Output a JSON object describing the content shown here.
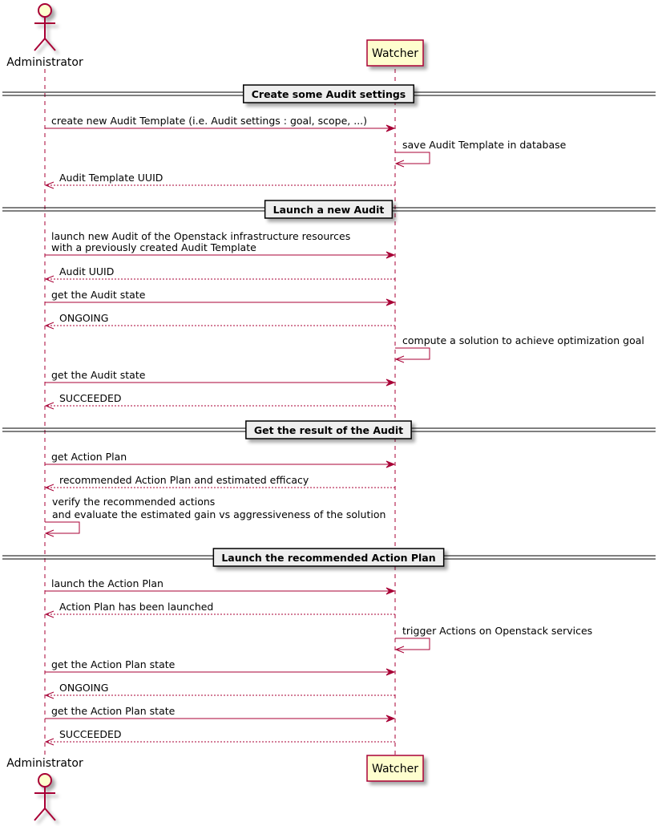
{
  "colors": {
    "line": "#A80036",
    "participant_fill": "#FEFECE",
    "divider_fill": "#EEEEEE"
  },
  "participants": {
    "administrator": {
      "label": "Administrator",
      "kind": "actor"
    },
    "watcher": {
      "label": "Watcher",
      "kind": "participant"
    }
  },
  "sequence": [
    {
      "type": "divider",
      "label": "Create some Audit settings"
    },
    {
      "type": "message",
      "from": "administrator",
      "to": "watcher",
      "style": "solid",
      "lines": [
        "create new Audit Template (i.e. Audit settings : goal, scope, ...)"
      ]
    },
    {
      "type": "message",
      "from": "watcher",
      "to": "watcher",
      "style": "solid",
      "lines": [
        "save Audit Template in database"
      ]
    },
    {
      "type": "message",
      "from": "watcher",
      "to": "administrator",
      "style": "dashed",
      "lines": [
        "Audit Template UUID"
      ]
    },
    {
      "type": "divider",
      "label": "Launch a new Audit"
    },
    {
      "type": "message",
      "from": "administrator",
      "to": "watcher",
      "style": "solid",
      "lines": [
        "launch new Audit of the Openstack infrastructure resources",
        "with a previously created Audit Template"
      ]
    },
    {
      "type": "message",
      "from": "watcher",
      "to": "administrator",
      "style": "dashed",
      "lines": [
        "Audit UUID"
      ]
    },
    {
      "type": "message",
      "from": "administrator",
      "to": "watcher",
      "style": "solid",
      "lines": [
        "get the Audit state"
      ]
    },
    {
      "type": "message",
      "from": "watcher",
      "to": "administrator",
      "style": "dashed",
      "lines": [
        "ONGOING"
      ]
    },
    {
      "type": "message",
      "from": "watcher",
      "to": "watcher",
      "style": "solid",
      "lines": [
        "compute a solution to achieve optimization goal"
      ]
    },
    {
      "type": "message",
      "from": "administrator",
      "to": "watcher",
      "style": "solid",
      "lines": [
        "get the Audit state"
      ]
    },
    {
      "type": "message",
      "from": "watcher",
      "to": "administrator",
      "style": "dashed",
      "lines": [
        "SUCCEEDED"
      ]
    },
    {
      "type": "divider",
      "label": "Get the result of the Audit"
    },
    {
      "type": "message",
      "from": "administrator",
      "to": "watcher",
      "style": "solid",
      "lines": [
        "get Action Plan"
      ]
    },
    {
      "type": "message",
      "from": "watcher",
      "to": "administrator",
      "style": "dashed",
      "lines": [
        "recommended Action Plan and estimated efficacy"
      ]
    },
    {
      "type": "message",
      "from": "administrator",
      "to": "administrator",
      "style": "solid",
      "lines": [
        "verify the recommended actions",
        "and evaluate the estimated gain vs aggressiveness of the solution"
      ]
    },
    {
      "type": "divider",
      "label": "Launch the recommended Action Plan"
    },
    {
      "type": "message",
      "from": "administrator",
      "to": "watcher",
      "style": "solid",
      "lines": [
        "launch the Action Plan"
      ]
    },
    {
      "type": "message",
      "from": "watcher",
      "to": "administrator",
      "style": "dashed",
      "lines": [
        "Action Plan has been launched"
      ]
    },
    {
      "type": "message",
      "from": "watcher",
      "to": "watcher",
      "style": "solid",
      "lines": [
        "trigger Actions on Openstack services"
      ]
    },
    {
      "type": "message",
      "from": "administrator",
      "to": "watcher",
      "style": "solid",
      "lines": [
        "get the Action Plan state"
      ]
    },
    {
      "type": "message",
      "from": "watcher",
      "to": "administrator",
      "style": "dashed",
      "lines": [
        "ONGOING"
      ]
    },
    {
      "type": "message",
      "from": "administrator",
      "to": "watcher",
      "style": "solid",
      "lines": [
        "get the Action Plan state"
      ]
    },
    {
      "type": "message",
      "from": "watcher",
      "to": "administrator",
      "style": "dashed",
      "lines": [
        "SUCCEEDED"
      ]
    }
  ]
}
